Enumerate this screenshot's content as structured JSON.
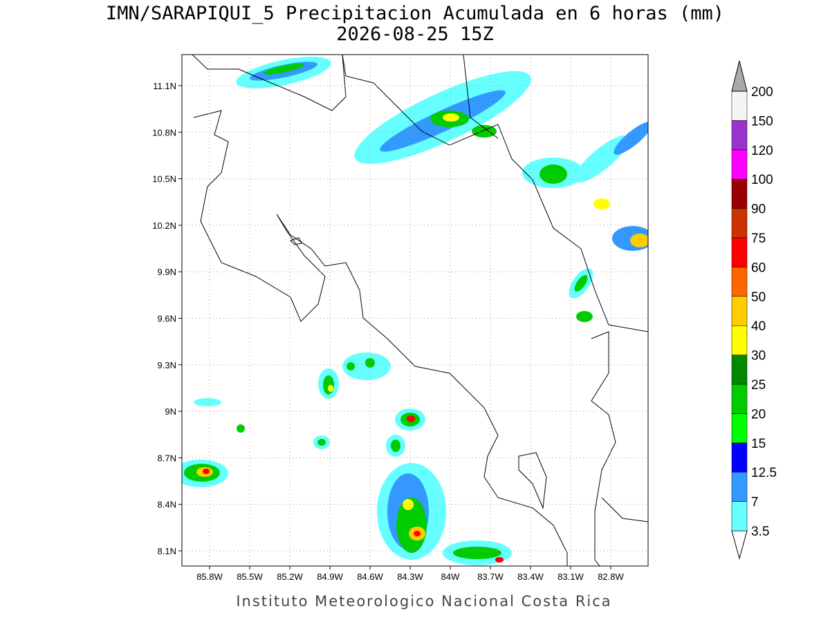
{
  "header": {
    "title": "IMN/SARAPIQUI_5 Precipitacion Acumulada en 6 horas (mm)",
    "subtitle": "2026-08-25 15Z"
  },
  "map": {
    "lon_labels": [
      "85.8W",
      "85.5W",
      "85.2W",
      "84.9W",
      "84.6W",
      "84.3W",
      "84W",
      "83.7W",
      "83.4W",
      "83.1W",
      "82.8W"
    ],
    "lat_labels": [
      "11.1N",
      "10.8N",
      "10.5N",
      "10.2N",
      "9.9N",
      "9.6N",
      "9.3N",
      "9N",
      "8.7N",
      "8.4N",
      "8.1N"
    ]
  },
  "colorbar": {
    "labels": [
      "3.5",
      "7",
      "12.5",
      "15",
      "20",
      "25",
      "30",
      "40",
      "50",
      "60",
      "75",
      "90",
      "100",
      "120",
      "150",
      "200"
    ],
    "under_color": "#ffffff",
    "colors": [
      "#66ffff",
      "#3399ff",
      "#0000ff",
      "#00ff00",
      "#00cc00",
      "#008800",
      "#ffff00",
      "#ffcc00",
      "#ff6600",
      "#ff0000",
      "#cc3300",
      "#990000",
      "#ff00ff",
      "#9933cc",
      "#f5f5f5"
    ],
    "over_color": "#aaaaaa"
  },
  "footer": "Instituto Meteorologico Nacional Costa Rica"
}
